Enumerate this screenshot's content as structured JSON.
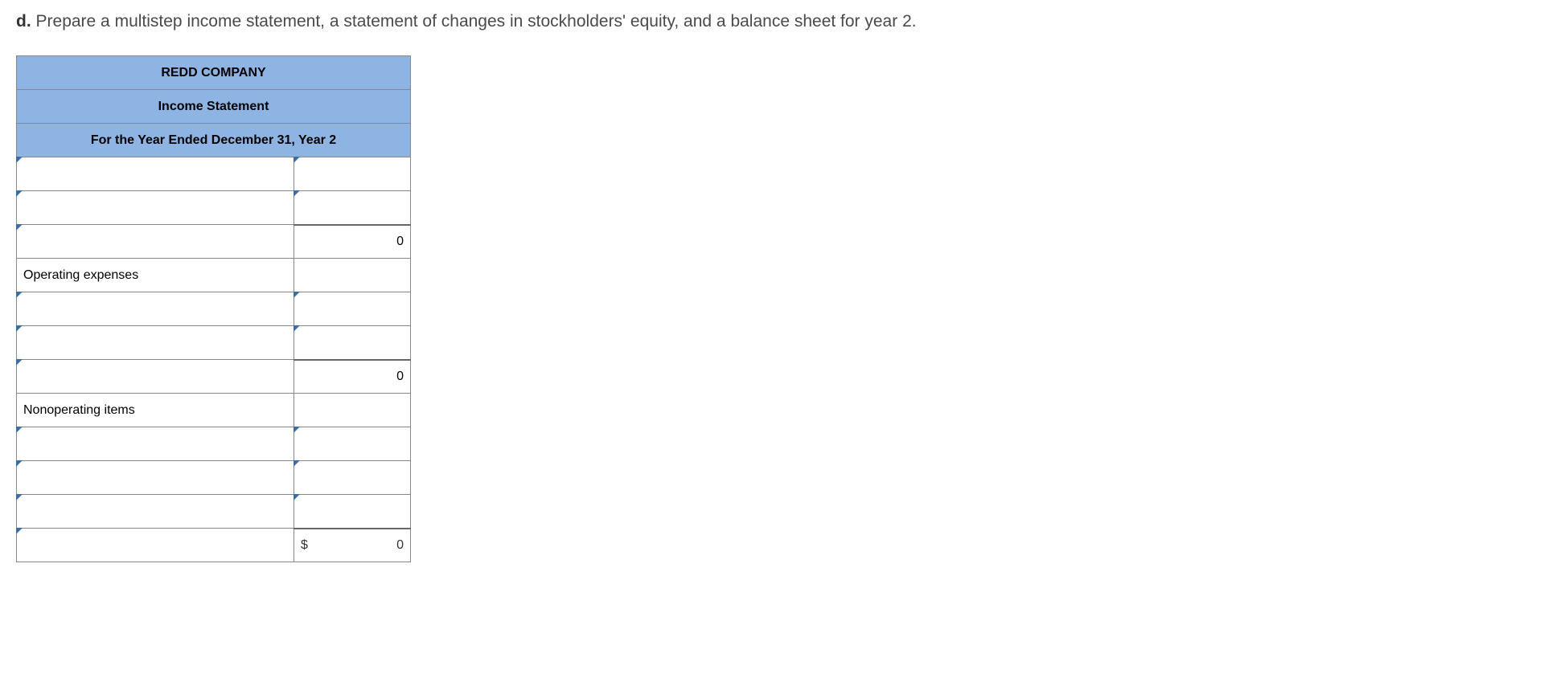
{
  "question": {
    "label": "d.",
    "text": "Prepare a multistep income statement, a statement of changes in stockholders' equity, and a balance sheet for year 2."
  },
  "table": {
    "header_rows": [
      "REDD COMPANY",
      "Income Statement",
      "For the Year Ended December 31, Year 2"
    ],
    "rows": [
      {
        "type": "input",
        "label": "",
        "value": ""
      },
      {
        "type": "input",
        "label": "",
        "value": ""
      },
      {
        "type": "calc",
        "label": "",
        "value": "0"
      },
      {
        "type": "static",
        "label": "Operating expenses",
        "value": null
      },
      {
        "type": "input",
        "label": "",
        "value": ""
      },
      {
        "type": "input",
        "label": "",
        "value": ""
      },
      {
        "type": "calc",
        "label": "",
        "value": "0"
      },
      {
        "type": "static",
        "label": "Nonoperating items",
        "value": null
      },
      {
        "type": "input",
        "label": "",
        "value": ""
      },
      {
        "type": "input",
        "label": "",
        "value": ""
      },
      {
        "type": "input",
        "label": "",
        "value": ""
      },
      {
        "type": "total",
        "label": "",
        "currency": "$",
        "value": "0"
      }
    ],
    "colors": {
      "header_bg": "#8eb4e3",
      "triangle": "#3b6ea5",
      "border": "#888888"
    }
  }
}
